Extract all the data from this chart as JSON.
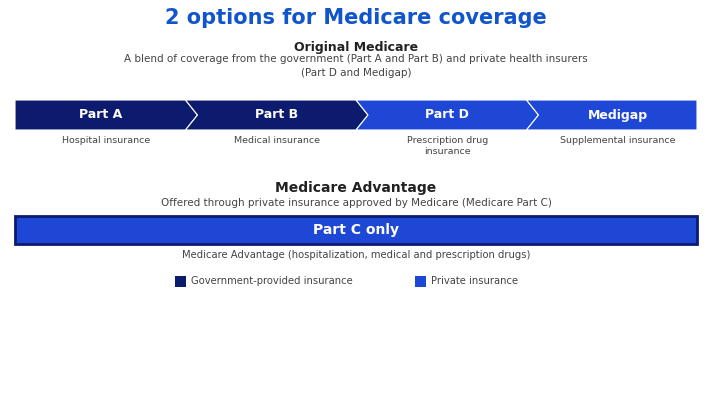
{
  "title": "2 options for Medicare coverage",
  "title_color": "#1155cc",
  "title_fontsize": 15,
  "bg_color": "#ffffff",
  "section1_heading": "Original Medicare",
  "section1_desc": "A blend of coverage from the government (Part A and Part B) and private health insurers\n(Part D and Medigap)",
  "section2_heading": "Medicare Advantage",
  "section2_desc": "Offered through private insurance approved by Medicare (Medicare Part C)",
  "parts_row1": [
    "Part A",
    "Part B",
    "Part D",
    "Medigap"
  ],
  "parts_row1_subtitles": [
    "Hospital insurance",
    "Medical insurance",
    "Prescription drug\ninsurance",
    "Supplemental insurance"
  ],
  "parts_row1_colors": [
    "#0d1b6e",
    "#0d1b6e",
    "#1e47d6",
    "#1e47d6"
  ],
  "part_c_label": "Part C only",
  "part_c_color": "#1e47d6",
  "part_c_border": "#0d1b6e",
  "part_c_desc": "Medicare Advantage (hospitalization, medical and prescription drugs)",
  "legend_gov_color": "#0d1b6e",
  "legend_priv_color": "#1e47d6",
  "legend_gov_label": "Government-provided insurance",
  "legend_priv_label": "Private insurance",
  "text_color": "#444444",
  "heading_color": "#222222",
  "chevron_border": "#ffffff",
  "outer_border_color": "#0d1b6e"
}
